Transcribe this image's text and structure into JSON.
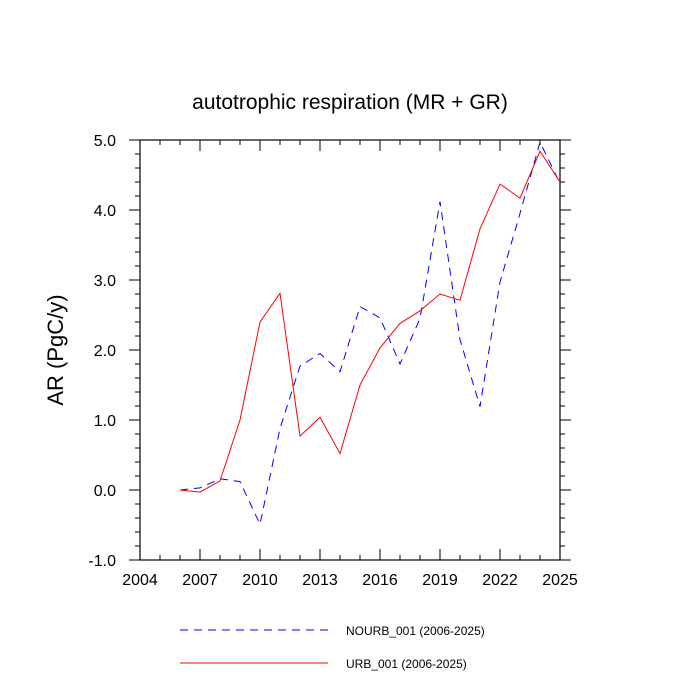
{
  "chart_data": {
    "type": "line",
    "title": "autotrophic respiration (MR + GR)",
    "xlabel": "",
    "ylabel": "AR  (PgC/y)",
    "xlim": [
      2004,
      2025
    ],
    "ylim": [
      -1.0,
      5.0
    ],
    "x_ticks": [
      2004,
      2007,
      2010,
      2013,
      2016,
      2019,
      2022,
      2025
    ],
    "x_tick_labels": [
      "2004",
      "2007",
      "2010",
      "2013",
      "2016",
      "2019",
      "2022",
      "2025"
    ],
    "y_ticks": [
      -1.0,
      0.0,
      1.0,
      2.0,
      3.0,
      4.0,
      5.0
    ],
    "y_tick_labels": [
      "-1.0",
      "0.0",
      "1.0",
      "2.0",
      "3.0",
      "4.0",
      "5.0"
    ],
    "x": [
      2006,
      2007,
      2008,
      2009,
      2010,
      2011,
      2012,
      2013,
      2014,
      2015,
      2016,
      2017,
      2018,
      2019,
      2020,
      2021,
      2022,
      2023,
      2024,
      2025
    ],
    "series": [
      {
        "name": "NOURB_001 (2006-2025)",
        "legend_label": "NOURB_001 (2006-2025)",
        "color": "#0000ff",
        "style": "dashed",
        "values": [
          0.0,
          0.03,
          0.16,
          0.12,
          -0.49,
          0.88,
          1.77,
          1.95,
          1.69,
          2.62,
          2.46,
          1.8,
          2.45,
          4.12,
          2.15,
          1.19,
          2.97,
          3.95,
          4.97,
          4.38
        ]
      },
      {
        "name": "URB_001 (2006-2025)",
        "legend_label": "URB_001 (2006-2025)",
        "color": "#ff0000",
        "style": "solid",
        "values": [
          0.0,
          -0.03,
          0.13,
          1.0,
          2.4,
          2.81,
          0.77,
          1.04,
          0.52,
          1.5,
          2.03,
          2.38,
          2.56,
          2.8,
          2.71,
          3.73,
          4.37,
          4.17,
          4.84,
          4.4
        ]
      }
    ]
  }
}
